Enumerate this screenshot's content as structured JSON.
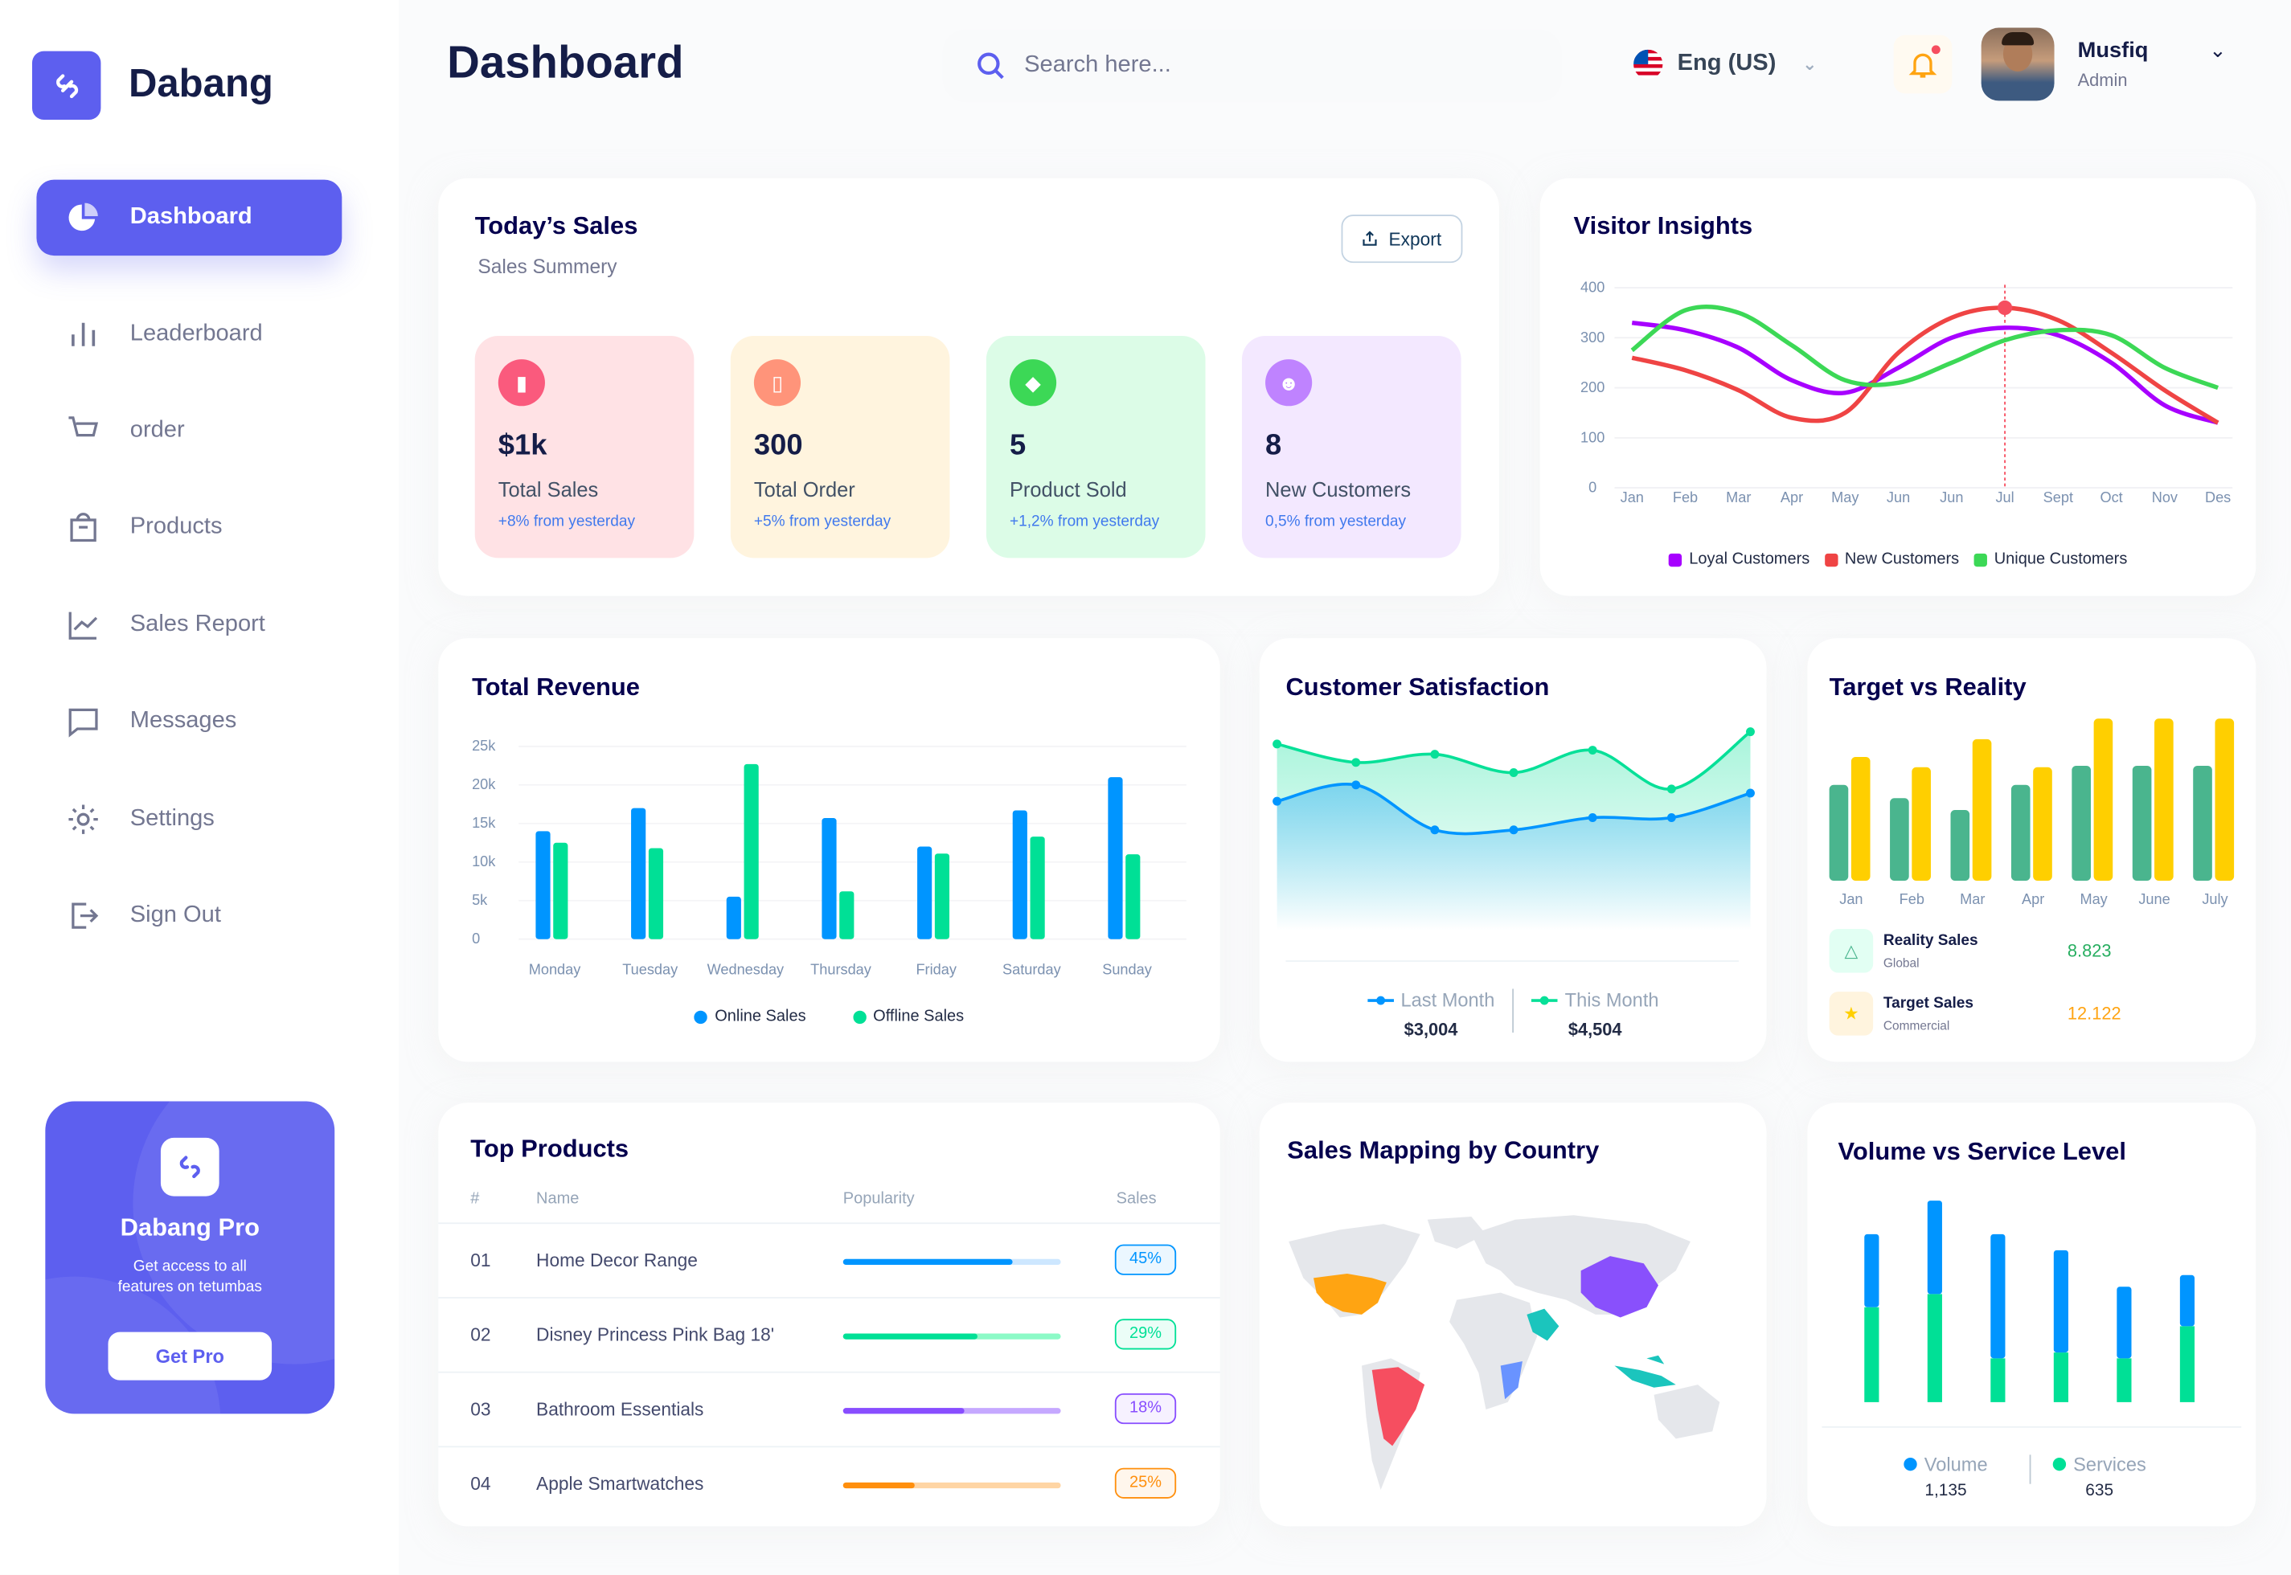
{
  "app": {
    "name": "Dabang",
    "logo_icon": "link-icon"
  },
  "sidebar": {
    "items": [
      {
        "label": "Dashboard",
        "icon": "pie-chart-icon",
        "active": true
      },
      {
        "label": "Leaderboard",
        "icon": "bar-chart-icon"
      },
      {
        "label": "order",
        "icon": "cart-icon"
      },
      {
        "label": "Products",
        "icon": "bag-icon"
      },
      {
        "label": "Sales Report",
        "icon": "line-chart-icon"
      },
      {
        "label": "Messages",
        "icon": "message-icon"
      },
      {
        "label": "Settings",
        "icon": "gear-icon"
      },
      {
        "label": "Sign Out",
        "icon": "sign-out-icon"
      }
    ],
    "promo": {
      "title": "Dabang Pro",
      "text": "Get access to all features on tetumbas",
      "button": "Get Pro"
    }
  },
  "header": {
    "title": "Dashboard",
    "search_placeholder": "Search here...",
    "language": "Eng (US)",
    "user": {
      "name": "Musfiq",
      "role": "Admin"
    }
  },
  "todays_sales": {
    "title": "Today’s Sales",
    "subtitle": "Sales Summery",
    "export": "Export",
    "cards": [
      {
        "value": "$1k",
        "label": "Total Sales",
        "change": "+8% from yesterday",
        "bg": "#FFE2E5",
        "icon_bg": "#FA5A7D",
        "icon": "chart-icon"
      },
      {
        "value": "300",
        "label": "Total Order",
        "change": "+5% from yesterday",
        "bg": "#FFF4DE",
        "icon_bg": "#FF947A",
        "icon": "document-icon"
      },
      {
        "value": "5",
        "label": "Product Sold",
        "change": "+1,2% from yesterday",
        "bg": "#DCFCE7",
        "icon_bg": "#3CD856",
        "icon": "tag-icon"
      },
      {
        "value": "8",
        "label": "New Customers",
        "change": "0,5% from yesterday",
        "bg": "#F3E8FF",
        "icon_bg": "#BF83FF",
        "icon": "user-add-icon"
      }
    ]
  },
  "chart_data": [
    {
      "id": "visitor",
      "type": "line",
      "title": "Visitor Insights",
      "categories": [
        "Jan",
        "Feb",
        "Mar",
        "Apr",
        "May",
        "Jun",
        "Jun",
        "Jul",
        "Sept",
        "Oct",
        "Nov",
        "Des"
      ],
      "ylim": [
        0,
        400
      ],
      "yticks": [
        0,
        100,
        200,
        300,
        400
      ],
      "grid": true,
      "legend": "bottom",
      "highlight": {
        "category": "Jul",
        "series": "New Customers"
      },
      "series": [
        {
          "name": "Loyal Customers",
          "color": "#A700FF",
          "values": [
            330,
            315,
            280,
            215,
            190,
            240,
            300,
            320,
            305,
            250,
            165,
            130
          ]
        },
        {
          "name": "New Customers",
          "color": "#EF4444",
          "values": [
            260,
            235,
            195,
            140,
            150,
            270,
            340,
            360,
            335,
            270,
            195,
            130
          ]
        },
        {
          "name": "Unique Customers",
          "color": "#3CD856",
          "values": [
            275,
            355,
            350,
            285,
            215,
            210,
            250,
            295,
            315,
            305,
            240,
            200
          ]
        }
      ]
    },
    {
      "id": "revenue",
      "type": "bar",
      "title": "Total Revenue",
      "categories": [
        "Monday",
        "Tuesday",
        "Wednesday",
        "Thursday",
        "Friday",
        "Saturday",
        "Sunday"
      ],
      "ylim": [
        0,
        25000
      ],
      "yticks": [
        "0",
        "5k",
        "10k",
        "15k",
        "20k",
        "25k"
      ],
      "grid": true,
      "legend": "bottom",
      "series": [
        {
          "name": "Online Sales",
          "color": "#0095FF",
          "values": [
            14000,
            17000,
            5500,
            15700,
            12000,
            16700,
            21000
          ]
        },
        {
          "name": "Offline Sales",
          "color": "#00E096",
          "values": [
            12500,
            11800,
            22700,
            6200,
            11100,
            13300,
            11000
          ]
        }
      ]
    },
    {
      "id": "satisfaction",
      "type": "area",
      "title": "Customer Satisfaction",
      "legend": "bottom",
      "series": [
        {
          "name": "Last Month",
          "color": "#0095FF",
          "total": "$3,004",
          "values": [
            2.8,
            3.2,
            2.1,
            2.1,
            2.4,
            2.4,
            3.0
          ]
        },
        {
          "name": "This Month",
          "color": "#07E098",
          "total": "$4,504",
          "values": [
            4.2,
            3.75,
            3.95,
            3.5,
            4.05,
            3.1,
            4.5
          ]
        }
      ]
    },
    {
      "id": "target",
      "type": "bar",
      "title": "Target vs Reality",
      "categories": [
        "Jan",
        "Feb",
        "Mar",
        "Apr",
        "May",
        "June",
        "July"
      ],
      "series": [
        {
          "name": "Reality Sales",
          "sub": "Global",
          "total": "8.823",
          "color": "#4AB58E",
          "values": [
            65,
            56,
            48,
            65,
            78,
            78,
            78
          ]
        },
        {
          "name": "Target Sales",
          "sub": "Commercial",
          "total": "12.122",
          "color": "#FFCF00",
          "values": [
            84,
            77,
            96,
            77,
            110,
            110,
            110
          ]
        }
      ]
    },
    {
      "id": "volume",
      "type": "bar",
      "stacked": true,
      "title": "Volume vs Service Level",
      "legend": "bottom",
      "series": [
        {
          "name": "Volume",
          "color": "#0095FF",
          "total": "1,135",
          "values": [
            50,
            64,
            85,
            70,
            49,
            35
          ]
        },
        {
          "name": "Services",
          "color": "#00E096",
          "total": "635",
          "values": [
            65,
            74,
            30,
            34,
            30,
            52
          ]
        }
      ]
    }
  ],
  "top_products": {
    "title": "Top Products",
    "columns": [
      "#",
      "Name",
      "Popularity",
      "Sales"
    ],
    "rows": [
      {
        "n": "01",
        "name": "Home Decor Range",
        "popularity": 78,
        "sales": "45%",
        "color": "#0095FF",
        "light": "#CDE7FF"
      },
      {
        "n": "02",
        "name": "Disney Princess Pink Bag 18'",
        "popularity": 62,
        "sales": "29%",
        "color": "#00E096",
        "light": "#8CFAC7"
      },
      {
        "n": "03",
        "name": "Bathroom Essentials",
        "popularity": 56,
        "sales": "18%",
        "color": "#884DFF",
        "light": "#C5A8FF"
      },
      {
        "n": "04",
        "name": "Apple Smartwatches",
        "popularity": 33,
        "sales": "25%",
        "color": "#FF8F0D",
        "light": "#FFD5A4"
      }
    ]
  },
  "sales_map": {
    "title": "Sales Mapping by Country",
    "colors": {
      "usa": "#FFA412",
      "brazil": "#F64E60",
      "china": "#8950FC",
      "saudi": "#1BC5BD",
      "africa": "#6993FF",
      "indonesia": "#1BC5BD"
    }
  }
}
